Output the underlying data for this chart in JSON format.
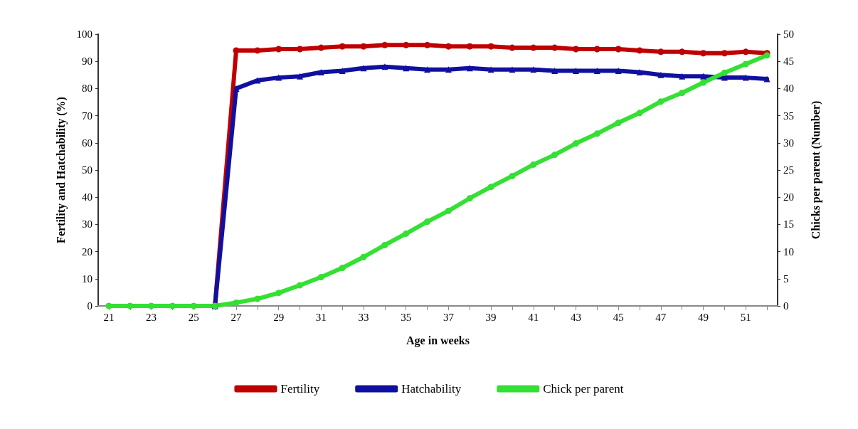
{
  "chart_data": {
    "type": "line",
    "xlabel": "Age in weeks",
    "ylabel": "Fertility and Hatchability (%)",
    "y2label": "Chicks per parent (Number)",
    "x": [
      21,
      22,
      23,
      24,
      25,
      26,
      27,
      28,
      29,
      30,
      31,
      32,
      33,
      34,
      35,
      36,
      37,
      38,
      39,
      40,
      41,
      42,
      43,
      44,
      45,
      46,
      47,
      48,
      49,
      50,
      51,
      52
    ],
    "series": [
      {
        "name": "Fertility",
        "color": "#c00000",
        "marker": "circle",
        "values": [
          null,
          null,
          null,
          null,
          null,
          0,
          94,
          94,
          94.5,
          94.5,
          95,
          95.5,
          95.5,
          96,
          96,
          96,
          95.5,
          95.5,
          95.5,
          95,
          95,
          95,
          94.5,
          94.5,
          94.5,
          94,
          93.5,
          93.5,
          93,
          93,
          93.5,
          93
        ]
      },
      {
        "name": "Hatchability",
        "color": "#1010a0",
        "marker": "triangle",
        "values": [
          null,
          null,
          null,
          null,
          null,
          0,
          80,
          83,
          84,
          84.5,
          86,
          86.5,
          87.5,
          88,
          87.5,
          87,
          87,
          87.5,
          87,
          87,
          87,
          86.5,
          86.5,
          86.5,
          86.5,
          86,
          85,
          84.5,
          84.5,
          84,
          84,
          83.5
        ]
      },
      {
        "name": "Chick per parent",
        "color": "#33e033",
        "marker": "circle",
        "axis": "y2",
        "values": [
          0,
          0,
          0,
          0,
          0,
          0,
          0.6,
          1.3,
          2.4,
          3.8,
          5.3,
          7,
          9,
          11.2,
          13.3,
          15.5,
          17.5,
          19.8,
          21.9,
          23.9,
          26,
          27.8,
          29.9,
          31.7,
          33.7,
          35.5,
          37.6,
          39.2,
          41.1,
          42.9,
          44.5,
          46.1
        ]
      }
    ],
    "xlim": [
      20.5,
      52.5
    ],
    "xticks": [
      21,
      {
        "value": 22,
        "label": null
      },
      23,
      {
        "value": 24,
        "label": null
      },
      25,
      {
        "value": 26,
        "label": null
      },
      27,
      {
        "value": 28,
        "label": null
      },
      29,
      {
        "value": 30,
        "label": null
      },
      31,
      {
        "value": 32,
        "label": null
      },
      33,
      {
        "value": 34,
        "label": null
      },
      35,
      {
        "value": 36,
        "label": null
      },
      37,
      {
        "value": 38,
        "label": null
      },
      39,
      {
        "value": 40,
        "label": null
      },
      41,
      {
        "value": 42,
        "label": null
      },
      43,
      {
        "value": 44,
        "label": null
      },
      45,
      {
        "value": 46,
        "label": null
      },
      47,
      {
        "value": 48,
        "label": null
      },
      49,
      {
        "value": 50,
        "label": null
      },
      51,
      {
        "value": 52,
        "label": null
      }
    ],
    "ylim": [
      0,
      100
    ],
    "yticks": [
      0,
      10,
      20,
      30,
      40,
      50,
      60,
      70,
      80,
      90,
      100
    ],
    "y2lim": [
      0,
      50
    ],
    "y2ticks": [
      0,
      5,
      10,
      15,
      20,
      25,
      30,
      35,
      40,
      45,
      50
    ],
    "grid": false,
    "legend": "bottom",
    "line_style": "solid"
  }
}
